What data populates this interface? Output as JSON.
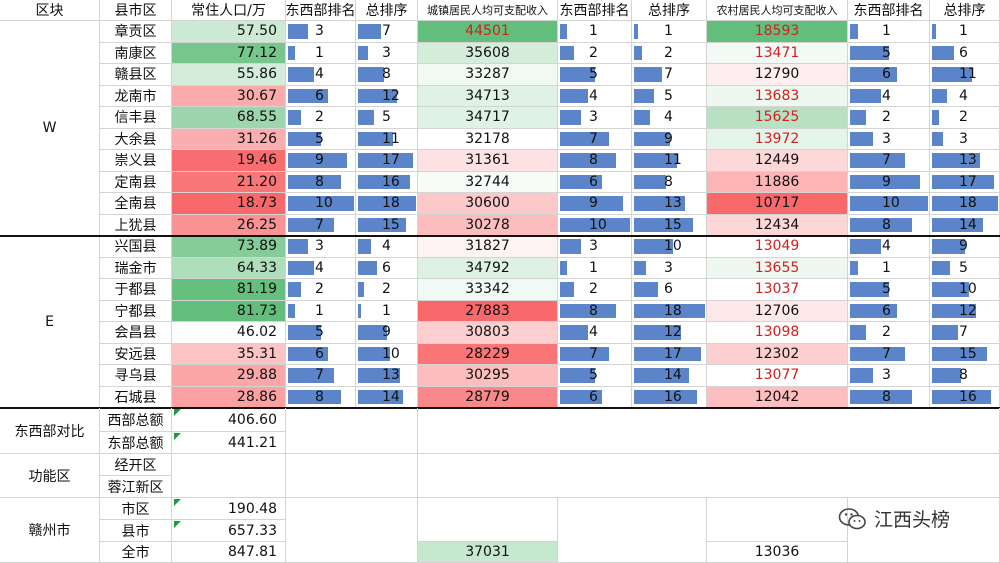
{
  "headers": [
    "区块",
    "县市区",
    "常住人口/万",
    "东西部排名",
    "总排序",
    "城镇居民人均可支配收入",
    "东西部排名",
    "总排序",
    "农村居民人均可支配收入",
    "东西部排名",
    "总排序"
  ],
  "sections": {
    "west": "W",
    "east": "E",
    "compare": "东西部对比",
    "func": "功能区",
    "city": "赣州市"
  },
  "rows": [
    {
      "county": "章贡区",
      "pop": "57.50",
      "pr": 3,
      "pt": 7,
      "urban": "44501",
      "ur": 1,
      "ut": 1,
      "rural": "18593",
      "rr": 1,
      "rt": 1,
      "urban_red": true,
      "rural_red": true
    },
    {
      "county": "南康区",
      "pop": "77.12",
      "pr": 1,
      "pt": 3,
      "urban": "35608",
      "ur": 2,
      "ut": 2,
      "rural": "13471",
      "rr": 5,
      "rt": 6,
      "urban_red": false,
      "rural_red": true
    },
    {
      "county": "赣县区",
      "pop": "55.86",
      "pr": 4,
      "pt": 8,
      "urban": "33287",
      "ur": 5,
      "ut": 7,
      "rural": "12790",
      "rr": 6,
      "rt": 11,
      "urban_red": false,
      "rural_red": false
    },
    {
      "county": "龙南市",
      "pop": "30.67",
      "pr": 6,
      "pt": 12,
      "urban": "34713",
      "ur": 4,
      "ut": 5,
      "rural": "13683",
      "rr": 4,
      "rt": 4,
      "urban_red": false,
      "rural_red": true
    },
    {
      "county": "信丰县",
      "pop": "68.55",
      "pr": 2,
      "pt": 5,
      "urban": "34717",
      "ur": 3,
      "ut": 4,
      "rural": "15625",
      "rr": 2,
      "rt": 2,
      "urban_red": false,
      "rural_red": true
    },
    {
      "county": "大余县",
      "pop": "31.26",
      "pr": 5,
      "pt": 11,
      "urban": "32178",
      "ur": 7,
      "ut": 9,
      "rural": "13972",
      "rr": 3,
      "rt": 3,
      "urban_red": false,
      "rural_red": true
    },
    {
      "county": "崇义县",
      "pop": "19.46",
      "pr": 9,
      "pt": 17,
      "urban": "31361",
      "ur": 8,
      "ut": 11,
      "rural": "12449",
      "rr": 7,
      "rt": 13,
      "urban_red": false,
      "rural_red": false
    },
    {
      "county": "定南县",
      "pop": "21.20",
      "pr": 8,
      "pt": 16,
      "urban": "32744",
      "ur": 6,
      "ut": 8,
      "rural": "11886",
      "rr": 9,
      "rt": 17,
      "urban_red": false,
      "rural_red": false
    },
    {
      "county": "全南县",
      "pop": "18.73",
      "pr": 10,
      "pt": 18,
      "urban": "30600",
      "ur": 9,
      "ut": 13,
      "rural": "10717",
      "rr": 10,
      "rt": 18,
      "urban_red": false,
      "rural_red": false
    },
    {
      "county": "上犹县",
      "pop": "26.25",
      "pr": 7,
      "pt": 15,
      "urban": "30278",
      "ur": 10,
      "ut": 15,
      "rural": "12434",
      "rr": 8,
      "rt": 14,
      "urban_red": false,
      "rural_red": false
    },
    {
      "county": "兴国县",
      "pop": "73.89",
      "pr": 3,
      "pt": 4,
      "urban": "31827",
      "ur": 3,
      "ut": 10,
      "rural": "13049",
      "rr": 4,
      "rt": 9,
      "urban_red": false,
      "rural_red": true
    },
    {
      "county": "瑞金市",
      "pop": "64.33",
      "pr": 4,
      "pt": 6,
      "urban": "34792",
      "ur": 1,
      "ut": 3,
      "rural": "13655",
      "rr": 1,
      "rt": 5,
      "urban_red": false,
      "rural_red": true
    },
    {
      "county": "于都县",
      "pop": "81.19",
      "pr": 2,
      "pt": 2,
      "urban": "33342",
      "ur": 2,
      "ut": 6,
      "rural": "13037",
      "rr": 5,
      "rt": 10,
      "urban_red": false,
      "rural_red": true
    },
    {
      "county": "宁都县",
      "pop": "81.73",
      "pr": 1,
      "pt": 1,
      "urban": "27883",
      "ur": 8,
      "ut": 18,
      "rural": "12706",
      "rr": 6,
      "rt": 12,
      "urban_red": false,
      "rural_red": false
    },
    {
      "county": "会昌县",
      "pop": "46.02",
      "pr": 5,
      "pt": 9,
      "urban": "30803",
      "ur": 4,
      "ut": 12,
      "rural": "13098",
      "rr": 2,
      "rt": 7,
      "urban_red": false,
      "rural_red": true
    },
    {
      "county": "安远县",
      "pop": "35.31",
      "pr": 6,
      "pt": 10,
      "urban": "28229",
      "ur": 7,
      "ut": 17,
      "rural": "12302",
      "rr": 7,
      "rt": 15,
      "urban_red": false,
      "rural_red": false
    },
    {
      "county": "寻乌县",
      "pop": "29.88",
      "pr": 7,
      "pt": 13,
      "urban": "30295",
      "ur": 5,
      "ut": 14,
      "rural": "13077",
      "rr": 3,
      "rt": 8,
      "urban_red": false,
      "rural_red": true
    },
    {
      "county": "石城县",
      "pop": "28.86",
      "pr": 8,
      "pt": 14,
      "urban": "28779",
      "ur": 6,
      "ut": 16,
      "rural": "12042",
      "rr": 8,
      "rt": 16,
      "urban_red": false,
      "rural_red": false
    }
  ],
  "summary": {
    "west_total_label": "西部总额",
    "west_total": "406.60",
    "east_total_label": "东部总额",
    "east_total": "441.21",
    "func1": "经开区",
    "func2": "蓉江新区",
    "district_label": "市区",
    "district": "190.48",
    "county_label": "县市",
    "county": "657.33",
    "all_label": "全市",
    "all_pop": "847.81",
    "all_urban": "37031",
    "all_rural": "13036"
  },
  "watermark": "江西头榜",
  "watermark_icon": "wechat-icon",
  "colors": {
    "bar": "#5b85c8",
    "green": "#63be7b",
    "red": "#f8696b",
    "line": "#111111"
  }
}
